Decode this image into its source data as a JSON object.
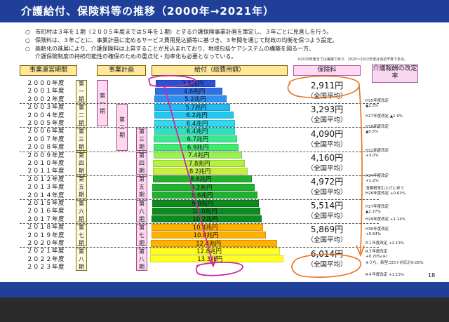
{
  "title": "介護給付、保険料等の推移（2000年→2021年）",
  "bullets": [
    "市町村は３年を１期（２００５年度までは５年を１期）とする介護保険事業計画を策定し、３年ごとに見直しを行う。",
    "保険料は、３年ごとに、事業計画に定めるサービス費用見込額等に基づき、３年間を通じて財政の均衡を保つよう設定。",
    "高齢化の進展により、介護保険料は上昇することが見込まれており、地域包括ケアシステムの構築を図る一方、",
    "介護保険制度の持続可能性の確保のための重点化・効率化も必要となっている。"
  ],
  "bullet_marker": "○",
  "note": "※2019年度までは実績であり、2020～2022年度は当初予算である。",
  "headers": {
    "period": "事業運営期間",
    "plan": "事業計画",
    "benefit": "給付（総費用額）",
    "premium": "保険料",
    "revision": "介護報酬の改定率"
  },
  "years": [
    "２０００年度",
    "２００１年度",
    "２００２年度",
    "２００３年度",
    "２００４年度",
    "２００５年度",
    "２００６年度",
    "２００７年度",
    "２００８年度",
    "２００９年度",
    "２０１０年度",
    "２０１１年度",
    "２０１２年度",
    "２０１３年度",
    "２０１４年度",
    "２０１５年度",
    "２０１６年度",
    "２０１７年度",
    "２０１８年度",
    "２０１９年度",
    "２０２０年度",
    "２０２１年度",
    "２０２２年度",
    "２０２３年度"
  ],
  "periods": [
    {
      "chars": [
        "第",
        "一",
        "期"
      ]
    },
    {
      "chars": [
        "第",
        "二",
        "期"
      ]
    },
    {
      "chars": [
        "第",
        "三",
        "期"
      ]
    },
    {
      "chars": [
        "第",
        "四",
        "期"
      ]
    },
    {
      "chars": [
        "第",
        "五",
        "期"
      ]
    },
    {
      "chars": [
        "第",
        "六",
        "期"
      ]
    },
    {
      "chars": [
        "第",
        "七",
        "期"
      ]
    },
    {
      "chars": [
        "第",
        "八",
        "期"
      ]
    }
  ],
  "plans": [
    {
      "chars": [
        "第",
        "一",
        "期"
      ]
    },
    {
      "chars": [
        "第",
        "二",
        "期"
      ]
    },
    {
      "chars": [
        "第",
        "三",
        "期"
      ]
    },
    {
      "chars": [
        "第",
        "四",
        "期"
      ]
    },
    {
      "chars": [
        "第",
        "五",
        "期"
      ]
    },
    {
      "chars": [
        "第",
        "六",
        "期"
      ]
    },
    {
      "chars": [
        "第",
        "七",
        "期"
      ]
    },
    {
      "chars": [
        "第",
        "八",
        "期"
      ]
    }
  ],
  "benefits": {
    "values": [
      3.6,
      4.6,
      5.2,
      5.7,
      6.2,
      6.4,
      6.4,
      6.7,
      6.9,
      7.4,
      7.8,
      8.2,
      8.8,
      9.2,
      9.6,
      9.8,
      10.0,
      10.2,
      10.4,
      10.8,
      12.4,
      12.8,
      13.3
    ],
    "labels": [
      "3.6兆円",
      "4.6兆円",
      "5.2兆円",
      "5.7兆円",
      "6.2兆円",
      "6.4兆円",
      "6.4兆円",
      "6.7兆円",
      "6.9兆円",
      "7.4兆円",
      "7.8兆円",
      "8.2兆円",
      "8.8兆円",
      "9.2兆円",
      "9.6兆円",
      "9.8兆円",
      "10.0兆円",
      "10.2兆円",
      "10.4兆円",
      "10.8兆円",
      "12.4兆円",
      "12.8兆円",
      "13.3兆円"
    ],
    "colors": [
      "#2a4fd8",
      "#2f6fe8",
      "#2f8ff0",
      "#22b8f0",
      "#22c8f0",
      "#30d8f0",
      "#30e0c0",
      "#3ae890",
      "#40e870",
      "#9af050",
      "#b6f040",
      "#c8f040",
      "#22b030",
      "#22b030",
      "#22b030",
      "#0e8a20",
      "#0e8a20",
      "#0e8a20",
      "#ffb000",
      "#ffb000",
      "#ffb000",
      "#ffff20",
      "#ffff20"
    ]
  },
  "premiums": [
    {
      "value": "2,911円",
      "sub": "（全国平均）"
    },
    {
      "value": "3,293円",
      "sub": "（全国平均）"
    },
    {
      "value": "4,090円",
      "sub": "（全国平均）"
    },
    {
      "value": "4,160円",
      "sub": "（全国平均）"
    },
    {
      "value": "4,972円",
      "sub": "（全国平均）"
    },
    {
      "value": "5,514円",
      "sub": "（全国平均）"
    },
    {
      "value": "5,869円",
      "sub": "（全国平均）"
    },
    {
      "value": "6,014円",
      "sub": "（全国平均）"
    }
  ],
  "revisions": [
    {
      "line1": "H15年度改定",
      "line2": "▲2.3%"
    },
    {
      "line1": "H17年度改定 ▲1.9%",
      "line2": ""
    },
    {
      "line1": "H18年度改定",
      "line2": "▲0.5%"
    },
    {
      "line1": "H21年度改定",
      "line2": "+3.0%"
    },
    {
      "line1": "H24年度改定",
      "line2": "+1.2%"
    },
    {
      "line1": "消費税率引上げに伴う",
      "line2": "H26年度改定 +0.63%"
    },
    {
      "line1": "H27年度改定",
      "line2": "▲2.27%"
    },
    {
      "line1": "H29年度改定 +1.14%",
      "line2": ""
    },
    {
      "line1": "H30年度改定",
      "line2": "+0.54%"
    },
    {
      "line1": "R１年度改定 +2.13%",
      "line2": ""
    },
    {
      "line1": "R３年度改定",
      "line2": "+0.70%(※)"
    },
    {
      "line1": "※うち、新型コロナ対応分0.05%",
      "line2": ""
    },
    {
      "line1": "R４年度改定 +1.13%",
      "line2": ""
    }
  ],
  "page_number": "18"
}
